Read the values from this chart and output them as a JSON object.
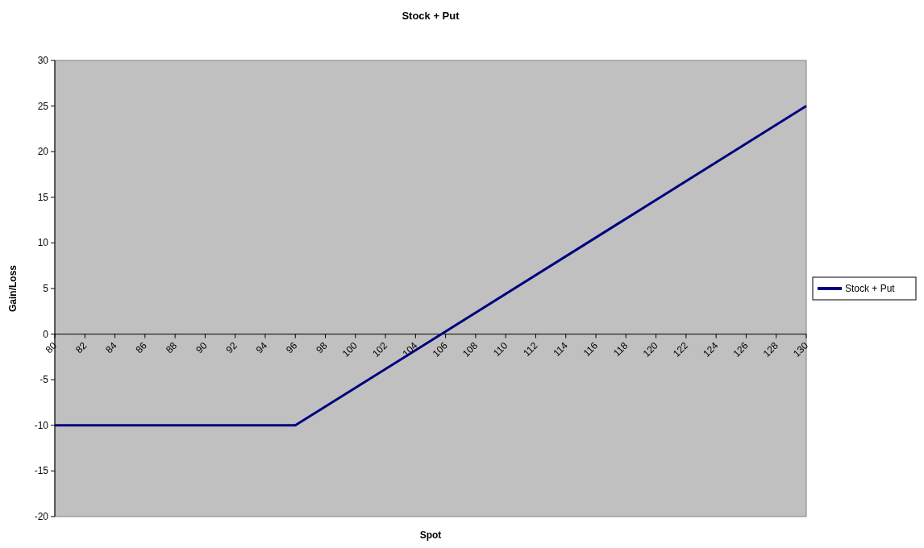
{
  "chart_data": {
    "type": "line",
    "title": "Stock + Put",
    "xlabel": "Spot",
    "ylabel": "Gain/Loss",
    "xlim": [
      80,
      130
    ],
    "xticks": [
      80,
      82,
      84,
      86,
      88,
      90,
      92,
      94,
      96,
      98,
      100,
      102,
      104,
      106,
      108,
      110,
      112,
      114,
      116,
      118,
      120,
      122,
      124,
      126,
      128,
      130
    ],
    "ylim": [
      -20,
      30
    ],
    "yticks": [
      -20,
      -15,
      -10,
      -5,
      0,
      5,
      10,
      15,
      20,
      25,
      30
    ],
    "series": [
      {
        "name": "Stock + Put",
        "color": "#000080",
        "x": [
          80,
          96,
          130
        ],
        "values": [
          -10,
          -10,
          25
        ]
      }
    ],
    "legend": "right",
    "grid": false,
    "line_style": "solid"
  }
}
